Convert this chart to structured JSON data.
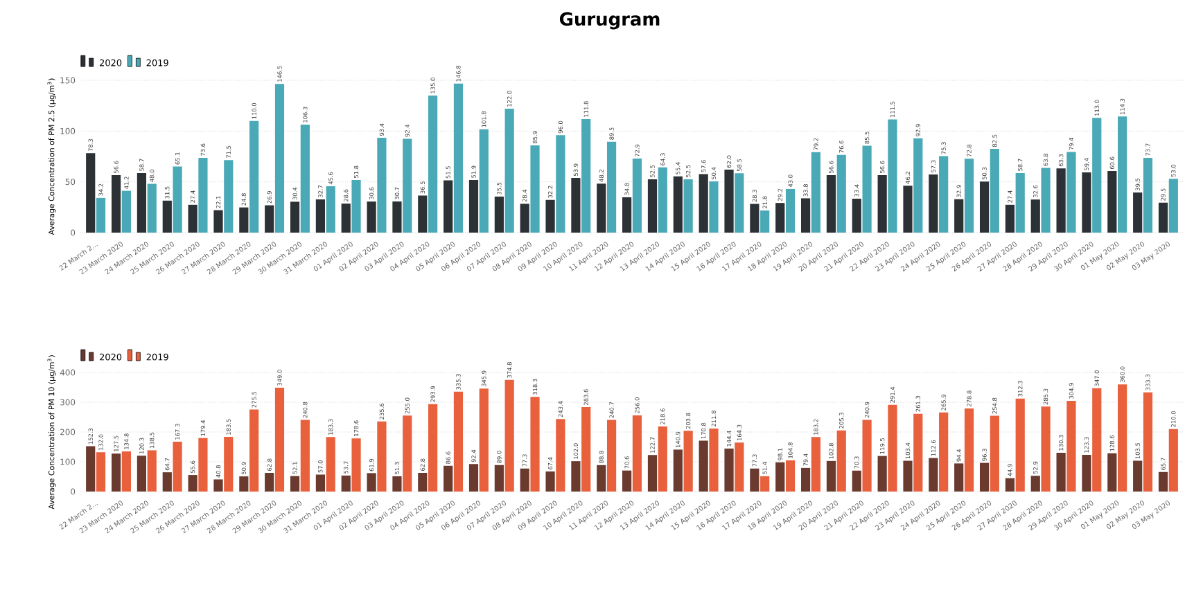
{
  "chart_data": [
    {
      "type": "bar",
      "title": "Gurugram",
      "ylabel": "Average Concentration of PM 2.5 (µg/m$^{3}$)",
      "categories": [
        "22 March 2...",
        "23 March 2020",
        "24 March 2020",
        "25 March 2020",
        "26 March 2020",
        "27 March 2020",
        "28 March 2020",
        "29 March 2020",
        "30 March 2020",
        "31 March 2020",
        "01 April 2020",
        "02 April 2020",
        "03 April 2020",
        "04 April 2020",
        "05 April 2020",
        "06 April 2020",
        "07 April 2020",
        "08 April 2020",
        "09 April 2020",
        "10 April 2020",
        "11 April 2020",
        "12 April 2020",
        "13 April 2020",
        "14 April 2020",
        "15 April 2020",
        "16 April 2020",
        "17 April 2020",
        "18 April 2020",
        "19 April 2020",
        "20 April 2020",
        "21 April 2020",
        "22 April 2020",
        "23 April 2020",
        "24 April 2020",
        "25 April 2020",
        "26 April 2020",
        "27 April 2020",
        "28 April 2020",
        "29 April 2020",
        "30 April 2020",
        "01 May 2020",
        "02 May 2020",
        "03 May 2020"
      ],
      "series": [
        {
          "name": "2020",
          "color": "#2b3135",
          "values": [
            78.3,
            56.6,
            58.7,
            31.5,
            27.4,
            22.1,
            24.8,
            26.9,
            30.4,
            32.7,
            28.6,
            30.6,
            30.7,
            36.5,
            51.5,
            51.9,
            35.5,
            28.4,
            32.2,
            53.9,
            48.2,
            34.8,
            52.5,
            55.4,
            57.6,
            62.0,
            28.3,
            29.2,
            33.8,
            56.6,
            33.4,
            56.6,
            46.2,
            57.3,
            32.9,
            50.3,
            27.4,
            32.6,
            63.3,
            59.4,
            60.6,
            39.5,
            29.5
          ],
          "value_labels": [
            "78.3",
            "56.6",
            "58.7",
            "31.5",
            "27.4",
            "22.1",
            "24.8",
            "26.9",
            "30.4",
            "32.7",
            "28.6",
            "30.6",
            "30.7",
            "36.5",
            "51.5",
            "51.9",
            "35.5",
            "28.4",
            "32.2",
            "53.9",
            "48.2",
            "34.8",
            "52.5",
            "55.4",
            "57.6",
            "62.0",
            "28.3",
            "29.2",
            "33.8",
            "56.6",
            "33.4",
            "56.6",
            "46.2",
            "57.3",
            "32.9",
            "50.3",
            "27.4",
            "32.6",
            "63.3",
            "59.4",
            "60.6",
            "39.5",
            "29.5"
          ]
        },
        {
          "name": "2019",
          "color": "#4aa9b6",
          "values": [
            34.2,
            41.2,
            48.0,
            65.1,
            73.6,
            71.5,
            110.0,
            146.5,
            106.3,
            45.6,
            51.8,
            93.4,
            92.4,
            135.0,
            146.8,
            101.8,
            122.0,
            85.9,
            96.0,
            111.8,
            89.5,
            72.9,
            64.3,
            52.5,
            50.4,
            58.5,
            21.8,
            43.0,
            79.2,
            76.6,
            85.5,
            111.5,
            92.9,
            75.3,
            72.8,
            82.5,
            58.7,
            63.8,
            79.4,
            113.0,
            114.3,
            73.7,
            53.0
          ],
          "value_labels": [
            "34.2",
            "41.2",
            "48.0",
            "65.1",
            "73.6",
            "71.5",
            "110.0",
            "146.5",
            "106.3",
            "45.6",
            "51.8",
            "93.4",
            "92.4",
            "135.0",
            "146.8",
            "101.8",
            "122.0",
            "85.9",
            "96.0",
            "111.8",
            "89.5",
            "72.9",
            "64.3",
            "52.5",
            "50.4",
            "58.5",
            "21.8",
            "43.0",
            "79.2",
            "76.6",
            "85.5",
            "111.5",
            "92.9",
            "75.3",
            "72.8",
            "82.5",
            "58.7",
            "63.8",
            "79.4",
            "113.0",
            "114.3",
            "73.7",
            "53.0"
          ]
        }
      ],
      "ylim": [
        0,
        150
      ],
      "yticks": [
        0,
        50,
        100,
        150
      ],
      "grid": "y",
      "legend": "top left"
    },
    {
      "type": "bar",
      "ylabel": "Average Concentration of PM 10 (µg/m$^{3}$)",
      "categories": [
        "22 March 2...",
        "23 March 2020",
        "24 March 2020",
        "25 March 2020",
        "26 March 2020",
        "27 March 2020",
        "28 March 2020",
        "29 March 2020",
        "30 March 2020",
        "31 March 2020",
        "01 April 2020",
        "02 April 2020",
        "03 April 2020",
        "04 April 2020",
        "05 April 2020",
        "06 April 2020",
        "07 April 2020",
        "08 April 2020",
        "09 April 2020",
        "10 April 2020",
        "11 April 2020",
        "12 April 2020",
        "13 April 2020",
        "14 April 2020",
        "15 April 2020",
        "16 April 2020",
        "17 April 2020",
        "18 April 2020",
        "19 April 2020",
        "20 April 2020",
        "21 April 2020",
        "22 April 2020",
        "23 April 2020",
        "24 April 2020",
        "25 April 2020",
        "26 April 2020",
        "27 April 2020",
        "28 April 2020",
        "29 April 2020",
        "30 April 2020",
        "01 May 2020",
        "02 May 2020",
        "03 May 2020"
      ],
      "series": [
        {
          "name": "2020",
          "color": "#6a3a2e",
          "values": [
            152.3,
            127.5,
            120.3,
            64.7,
            55.6,
            40.8,
            50.9,
            62.8,
            52.1,
            57.0,
            53.7,
            61.9,
            51.3,
            62.8,
            86.6,
            92.4,
            89.0,
            77.3,
            67.4,
            102.0,
            88.8,
            70.6,
            122.7,
            140.9,
            170.8,
            144.4,
            77.3,
            98.1,
            79.4,
            102.8,
            70.3,
            119.5,
            103.4,
            112.6,
            94.4,
            96.3,
            44.9,
            52.9,
            130.3,
            123.3,
            128.6,
            103.5,
            65.7
          ],
          "value_labels": [
            "152.3",
            "127.5",
            "120.3",
            "64.7",
            "55.6",
            "40.8",
            "50.9",
            "62.8",
            "52.1",
            "57.0",
            "53.7",
            "61.9",
            "51.3",
            "62.8",
            "86.6",
            "92.4",
            "89.0",
            "77.3",
            "67.4",
            "102.0",
            "88.8",
            "70.6",
            "122.7",
            "140.9",
            "170.8",
            "144.4",
            "77.3",
            "98.1",
            "79.4",
            "102.8",
            "70.3",
            "119.5",
            "103.4",
            "112.6",
            "94.4",
            "96.3",
            "44.9",
            "52.9",
            "130.3",
            "123.3",
            "128.6",
            "103.5",
            "65.7"
          ]
        },
        {
          "name": "2019",
          "color": "#e8603c",
          "values": [
            132.0,
            134.8,
            138.5,
            167.3,
            179.4,
            183.5,
            275.5,
            349.0,
            240.8,
            183.3,
            178.6,
            235.6,
            255.0,
            293.9,
            335.3,
            345.9,
            374.8,
            318.3,
            243.4,
            283.6,
            240.7,
            256.0,
            218.6,
            203.8,
            211.8,
            164.3,
            51.4,
            104.8,
            183.2,
            205.3,
            240.9,
            291.4,
            261.3,
            265.9,
            278.8,
            254.8,
            312.3,
            285.3,
            304.9,
            347.0,
            360.0,
            333.3,
            210.0
          ],
          "value_labels": [
            "132.0",
            "134.8",
            "138.5",
            "167.3",
            "179.4",
            "183.5",
            "275.5",
            "349.0",
            "240.8",
            "183.3",
            "178.6",
            "235.6",
            "255.0",
            "293.9",
            "335.3",
            "345.9",
            "374.8",
            "318.3",
            "243.4",
            "283.6",
            "240.7",
            "256.0",
            "218.6",
            "203.8",
            "211.8",
            "164.3",
            "51.4",
            "104.8",
            "183.2",
            "205.3",
            "240.9",
            "291.4",
            "261.3",
            "265.9",
            "278.8",
            "254.8",
            "312.3",
            "285.3",
            "304.9",
            "347.0",
            "360.0",
            "333.3",
            "210.0"
          ]
        }
      ],
      "ylim": [
        0,
        400
      ],
      "yticks": [
        0,
        100,
        200,
        300,
        400
      ],
      "grid": "y",
      "legend": "top left"
    }
  ]
}
